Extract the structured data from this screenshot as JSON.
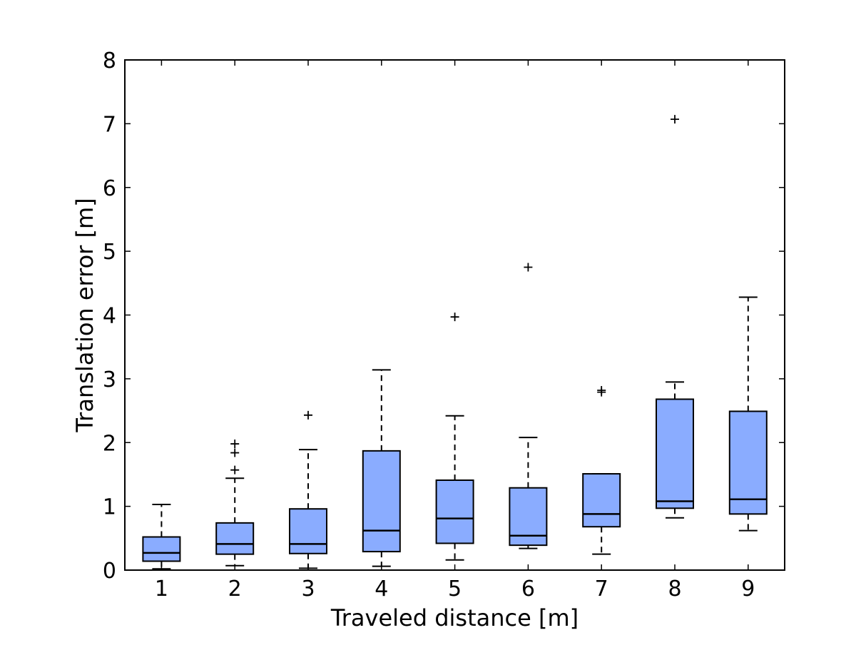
{
  "chart_data": {
    "type": "box",
    "title": "",
    "xlabel": "Traveled distance [m]",
    "ylabel": "Translation error [m]",
    "ylim": [
      0,
      8
    ],
    "yticks": [
      "0",
      "1",
      "2",
      "3",
      "4",
      "5",
      "6",
      "7",
      "8"
    ],
    "categories": [
      "1",
      "2",
      "3",
      "4",
      "5",
      "6",
      "7",
      "8",
      "9"
    ],
    "grid": false,
    "legend": "none",
    "box_color": "#8aacff",
    "boxes": [
      {
        "category": "1",
        "whisker_low": 0.02,
        "q1": 0.14,
        "median": 0.27,
        "q3": 0.52,
        "whisker_high": 1.03,
        "outliers": []
      },
      {
        "category": "2",
        "whisker_low": 0.07,
        "q1": 0.25,
        "median": 0.41,
        "q3": 0.74,
        "whisker_high": 1.44,
        "outliers": [
          1.57,
          1.84,
          1.98
        ]
      },
      {
        "category": "3",
        "whisker_low": 0.03,
        "q1": 0.26,
        "median": 0.41,
        "q3": 0.96,
        "whisker_high": 1.89,
        "outliers": [
          2.43
        ]
      },
      {
        "category": "4",
        "whisker_low": 0.06,
        "q1": 0.29,
        "median": 0.62,
        "q3": 1.87,
        "whisker_high": 3.14,
        "outliers": []
      },
      {
        "category": "5",
        "whisker_low": 0.16,
        "q1": 0.42,
        "median": 0.81,
        "q3": 1.41,
        "whisker_high": 2.42,
        "outliers": [
          3.97
        ]
      },
      {
        "category": "6",
        "whisker_low": 0.34,
        "q1": 0.39,
        "median": 0.54,
        "q3": 1.29,
        "whisker_high": 2.08,
        "outliers": [
          4.75
        ]
      },
      {
        "category": "7",
        "whisker_low": 0.25,
        "q1": 0.68,
        "median": 0.88,
        "q3": 1.51,
        "whisker_high": 1.51,
        "outliers": [
          2.79,
          2.82
        ]
      },
      {
        "category": "8",
        "whisker_low": 0.82,
        "q1": 0.97,
        "median": 1.08,
        "q3": 2.68,
        "whisker_high": 2.95,
        "outliers": [
          7.07
        ]
      },
      {
        "category": "9",
        "whisker_low": 0.62,
        "q1": 0.88,
        "median": 1.11,
        "q3": 2.49,
        "whisker_high": 4.28,
        "outliers": []
      }
    ]
  }
}
